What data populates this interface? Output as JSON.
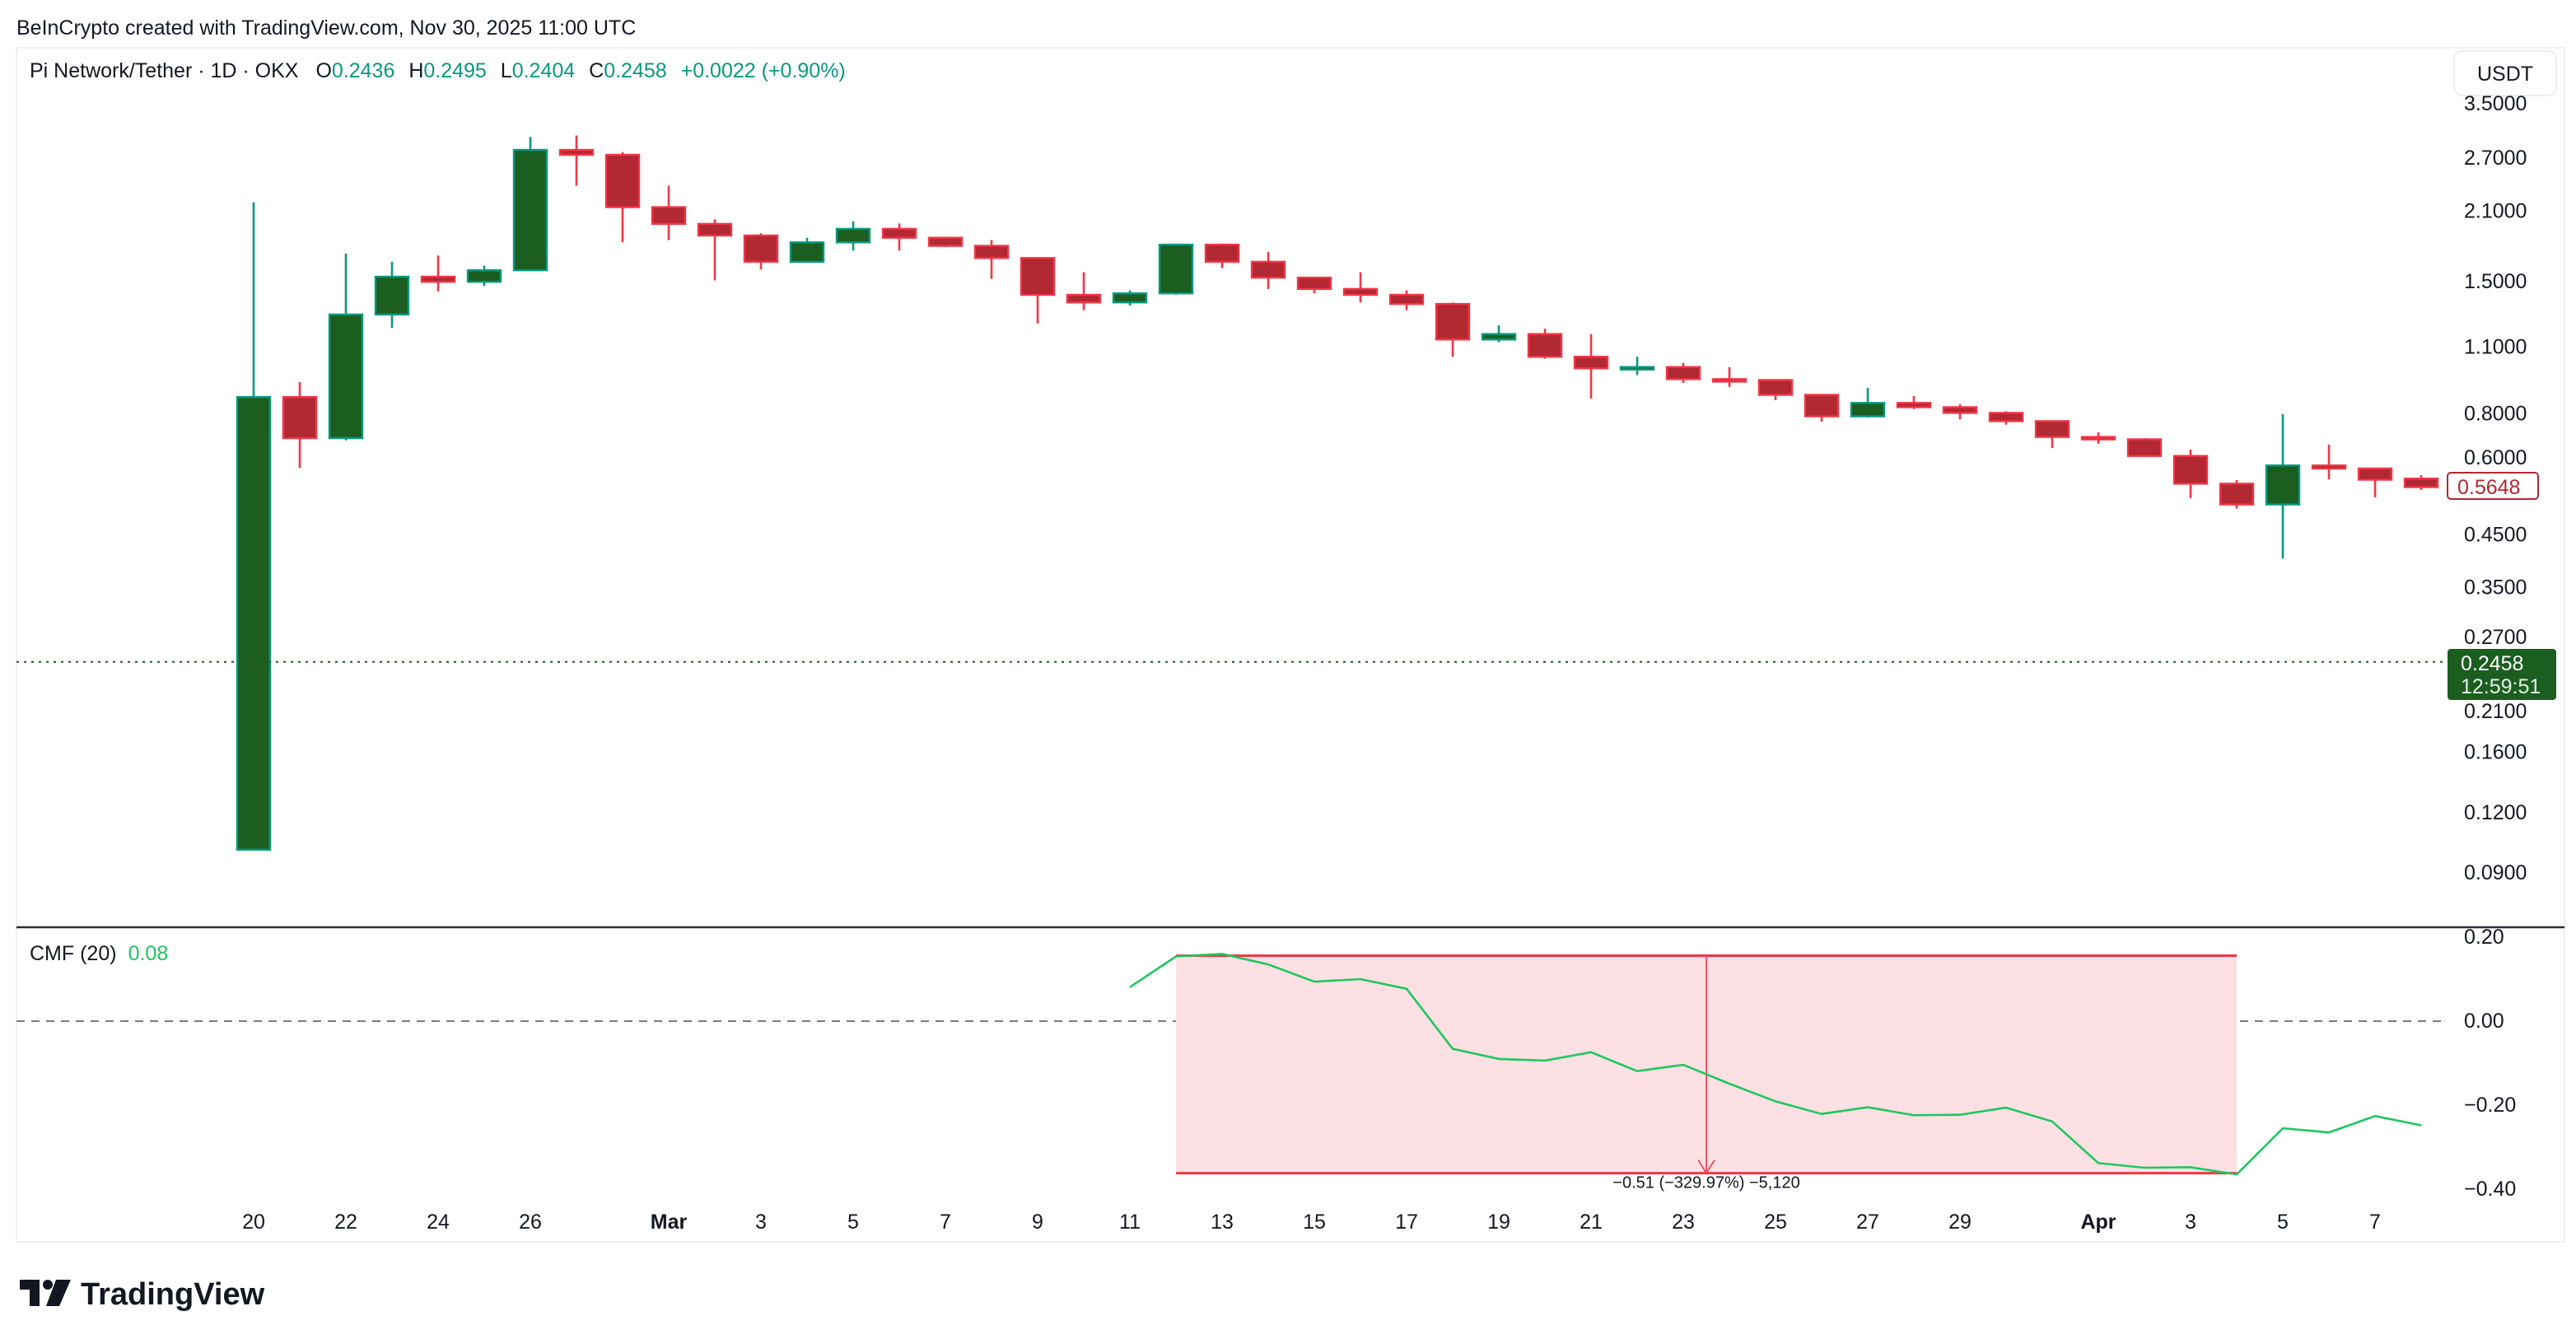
{
  "header": {
    "credit": "BeInCrypto created with TradingView.com, Nov 30, 2025 11:00 UTC"
  },
  "legend": {
    "symbol": "Pi Network/Tether · 1D · OKX",
    "o_label": "O",
    "o": "0.2436",
    "h_label": "H",
    "h": "0.2495",
    "l_label": "L",
    "l": "0.2404",
    "c_label": "C",
    "c": "0.2458",
    "change": "+0.0022 (+0.90%)"
  },
  "currency_button": "USDT",
  "price_axis": [
    "3.5000",
    "2.7000",
    "2.1000",
    "1.5000",
    "1.1000",
    "0.8000",
    "0.6000",
    "0.4500",
    "0.3500",
    "0.2700",
    "0.2100",
    "0.1600",
    "0.1200",
    "0.0900"
  ],
  "last_bar_label": "0.5648",
  "current_price": {
    "value": "0.2458",
    "countdown": "12:59:51"
  },
  "cmf": {
    "title": "CMF (20)",
    "value": "0.08",
    "axis": [
      "0.20",
      "0.00",
      "−0.20",
      "−0.40"
    ],
    "measure_label": "−0.51 (−329.97%) −5,120"
  },
  "x_axis": [
    {
      "label": "20",
      "i": 0
    },
    {
      "label": "22",
      "i": 2
    },
    {
      "label": "24",
      "i": 4
    },
    {
      "label": "26",
      "i": 6
    },
    {
      "label": "Mar",
      "i": 9,
      "bold": true
    },
    {
      "label": "3",
      "i": 11
    },
    {
      "label": "5",
      "i": 13
    },
    {
      "label": "7",
      "i": 15
    },
    {
      "label": "9",
      "i": 17
    },
    {
      "label": "11",
      "i": 19
    },
    {
      "label": "13",
      "i": 21
    },
    {
      "label": "15",
      "i": 23
    },
    {
      "label": "17",
      "i": 25
    },
    {
      "label": "19",
      "i": 27
    },
    {
      "label": "21",
      "i": 29
    },
    {
      "label": "23",
      "i": 31
    },
    {
      "label": "25",
      "i": 33
    },
    {
      "label": "27",
      "i": 35
    },
    {
      "label": "29",
      "i": 37
    },
    {
      "label": "Apr",
      "i": 40,
      "bold": true
    },
    {
      "label": "3",
      "i": 42
    },
    {
      "label": "5",
      "i": 44
    },
    {
      "label": "7",
      "i": 46
    }
  ],
  "footer": {
    "logo": "TradingView"
  },
  "colors": {
    "up_body": "#1b5e20",
    "up_border": "#089981",
    "down_body": "#b22833",
    "down_border": "#f23645",
    "cmf_line": "#1ec760",
    "measure_fill": "#fde0e3",
    "measure_line": "#f23645"
  },
  "chart_data": [
    {
      "type": "candlestick",
      "y_scale": "log",
      "ylim": [
        0.09,
        3.5
      ],
      "x_start": "Feb 20",
      "x_end": "Apr 8",
      "ohlc": [
        [
          0.1006,
          2.19,
          0.1006,
          0.867
        ],
        [
          0.867,
          0.931,
          0.619,
          0.713
        ],
        [
          0.713,
          1.716,
          0.705,
          1.284
        ],
        [
          1.284,
          1.65,
          1.205,
          1.537
        ],
        [
          1.537,
          1.7,
          1.433,
          1.5
        ],
        [
          1.5,
          1.62,
          1.47,
          1.585
        ],
        [
          1.585,
          2.99,
          1.585,
          2.81
        ],
        [
          2.81,
          3.01,
          2.37,
          2.745
        ],
        [
          2.745,
          2.78,
          1.81,
          2.14
        ],
        [
          2.14,
          2.37,
          1.83,
          1.976
        ],
        [
          1.976,
          2.02,
          1.51,
          1.87
        ],
        [
          1.87,
          1.89,
          1.59,
          1.65
        ],
        [
          1.65,
          1.85,
          1.65,
          1.81
        ],
        [
          1.81,
          2.0,
          1.74,
          1.93
        ],
        [
          1.93,
          1.98,
          1.74,
          1.85
        ],
        [
          1.85,
          1.85,
          1.77,
          1.78
        ],
        [
          1.78,
          1.83,
          1.52,
          1.68
        ],
        [
          1.68,
          1.68,
          1.23,
          1.41
        ],
        [
          1.41,
          1.57,
          1.31,
          1.36
        ],
        [
          1.36,
          1.44,
          1.34,
          1.42
        ],
        [
          1.42,
          1.8,
          1.41,
          1.79
        ],
        [
          1.79,
          1.8,
          1.6,
          1.65
        ],
        [
          1.65,
          1.73,
          1.45,
          1.53
        ],
        [
          1.53,
          1.53,
          1.42,
          1.45
        ],
        [
          1.45,
          1.57,
          1.36,
          1.41
        ],
        [
          1.41,
          1.44,
          1.31,
          1.35
        ],
        [
          1.35,
          1.36,
          1.05,
          1.14
        ],
        [
          1.14,
          1.22,
          1.125,
          1.17
        ],
        [
          1.17,
          1.2,
          1.04,
          1.05
        ],
        [
          1.05,
          1.17,
          0.861,
          0.994
        ],
        [
          0.995,
          1.05,
          0.962,
          1.0
        ],
        [
          1.0,
          1.02,
          0.927,
          0.944
        ],
        [
          0.944,
          0.999,
          0.909,
          0.94
        ],
        [
          0.94,
          0.944,
          0.854,
          0.876
        ],
        [
          0.876,
          0.876,
          0.771,
          0.791
        ],
        [
          0.791,
          0.905,
          0.787,
          0.843
        ],
        [
          0.843,
          0.871,
          0.819,
          0.826
        ],
        [
          0.826,
          0.838,
          0.78,
          0.804
        ],
        [
          0.804,
          0.81,
          0.76,
          0.773
        ],
        [
          0.773,
          0.773,
          0.68,
          0.717
        ],
        [
          0.717,
          0.733,
          0.694,
          0.709
        ],
        [
          0.709,
          0.713,
          0.652,
          0.655
        ],
        [
          0.655,
          0.675,
          0.536,
          0.574
        ],
        [
          0.574,
          0.584,
          0.51,
          0.52
        ],
        [
          0.52,
          0.799,
          0.402,
          0.626
        ],
        [
          0.626,
          0.691,
          0.586,
          0.617
        ],
        [
          0.617,
          0.62,
          0.538,
          0.585
        ],
        [
          0.588,
          0.598,
          0.557,
          0.5648
        ]
      ],
      "current_price_line": 0.2458
    },
    {
      "type": "line",
      "title": "CMF (20)",
      "ylim": [
        -0.4,
        0.2
      ],
      "x_start": "Mar 11",
      "x_end": "Apr 8",
      "values": [
        0.081,
        0.154,
        0.16,
        0.135,
        0.094,
        0.1,
        0.077,
        -0.066,
        -0.09,
        -0.094,
        -0.074,
        -0.119,
        -0.104,
        -0.149,
        -0.191,
        -0.221,
        -0.205,
        -0.224,
        -0.223,
        -0.206,
        -0.239,
        -0.338,
        -0.349,
        -0.348,
        -0.365,
        -0.255,
        -0.265,
        -0.226,
        -0.248
      ],
      "zero_line": "dashed",
      "measure": {
        "from": "Mar 12",
        "to": "Apr 4",
        "top": 0.156,
        "bottom": -0.362
      }
    }
  ]
}
